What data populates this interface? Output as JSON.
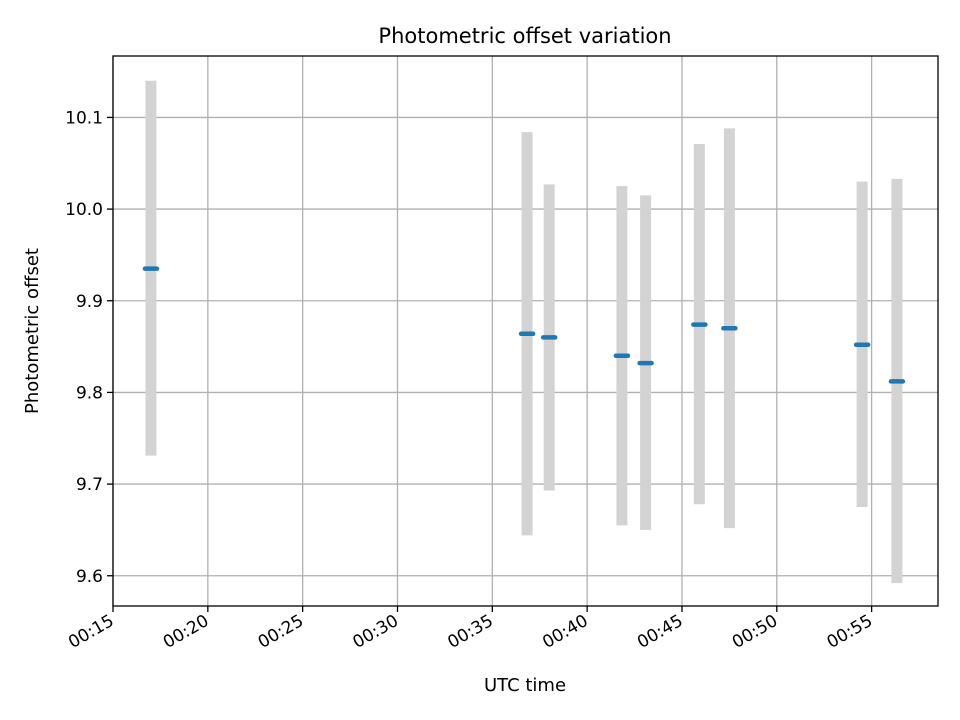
{
  "chart_data": {
    "type": "scatter",
    "title": "Photometric offset variation",
    "xlabel": "UTC time",
    "ylabel": "Photometric offset",
    "x_ticks": [
      "00:15",
      "00:20",
      "00:25",
      "00:30",
      "00:35",
      "00:40",
      "00:45",
      "00:50",
      "00:55"
    ],
    "y_ticks": [
      "9.6",
      "9.7",
      "9.8",
      "9.9",
      "10.0",
      "10.1"
    ],
    "xlim": [
      "00:15",
      "00:58:30"
    ],
    "ylim": [
      9.567,
      10.167
    ],
    "grid": true,
    "series": [
      {
        "marker_color": "#1f77b4",
        "errorbar_color": "#d3d3d3",
        "points": [
          {
            "x": "00:17:00",
            "y": 9.935,
            "ylo": 9.731,
            "yhi": 10.14
          },
          {
            "x": "00:36:50",
            "y": 9.864,
            "ylo": 9.644,
            "yhi": 10.084
          },
          {
            "x": "00:38:00",
            "y": 9.86,
            "ylo": 9.693,
            "yhi": 10.027
          },
          {
            "x": "00:41:50",
            "y": 9.84,
            "ylo": 9.655,
            "yhi": 10.025
          },
          {
            "x": "00:43:05",
            "y": 9.832,
            "ylo": 9.65,
            "yhi": 10.015
          },
          {
            "x": "00:45:55",
            "y": 9.874,
            "ylo": 9.678,
            "yhi": 10.071
          },
          {
            "x": "00:47:30",
            "y": 9.87,
            "ylo": 9.652,
            "yhi": 10.088
          },
          {
            "x": "00:54:30",
            "y": 9.852,
            "ylo": 9.675,
            "yhi": 10.03
          },
          {
            "x": "00:56:20",
            "y": 9.812,
            "ylo": 9.592,
            "yhi": 10.033
          }
        ]
      }
    ]
  }
}
